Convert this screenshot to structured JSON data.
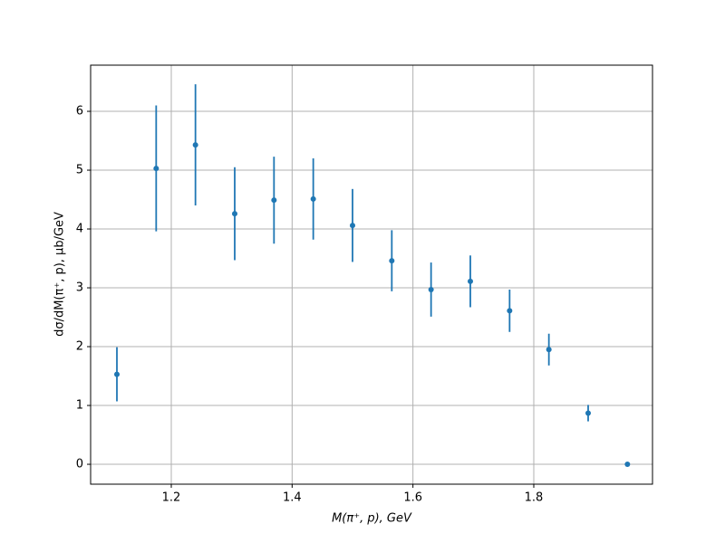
{
  "chart_data": {
    "type": "errorbar",
    "x_label": "M(π⁺, p), GeV",
    "y_label": "dσ/dM(π⁺, p), μb/GeV",
    "x": [
      1.11,
      1.175,
      1.24,
      1.305,
      1.37,
      1.435,
      1.5,
      1.565,
      1.63,
      1.695,
      1.76,
      1.825,
      1.89,
      1.955
    ],
    "values": [
      1.53,
      5.03,
      5.43,
      4.26,
      4.49,
      4.51,
      4.06,
      3.46,
      2.97,
      3.11,
      2.61,
      1.95,
      0.87,
      0
    ],
    "errors": [
      0.46,
      1.07,
      1.03,
      0.79,
      0.74,
      0.69,
      0.62,
      0.52,
      0.46,
      0.44,
      0.36,
      0.27,
      0.14,
      0
    ],
    "color": "#1f77b4",
    "xlim": [
      1.0665,
      1.9965
    ],
    "ylim": [
      -0.338,
      6.785
    ],
    "xticks": [
      1.2,
      1.4,
      1.6,
      1.8
    ],
    "yticks": [
      0,
      1,
      2,
      3,
      4,
      5,
      6
    ],
    "grid": true
  }
}
